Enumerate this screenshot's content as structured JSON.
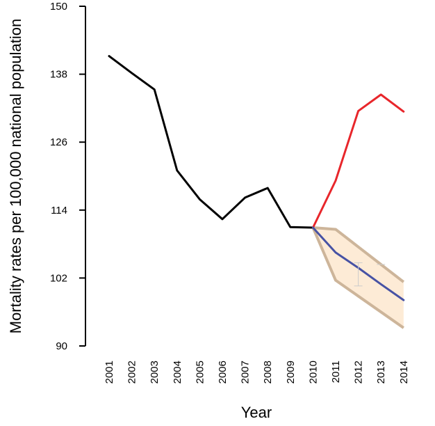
{
  "chart_data": {
    "type": "line",
    "xlabel": "Year",
    "ylabel": "Mortality rates per 100,000 national population",
    "ylim": [
      90,
      150
    ],
    "yticks": [
      90,
      102,
      114,
      126,
      138,
      150
    ],
    "x": [
      "2001",
      "2002",
      "2003",
      "2004",
      "2005",
      "2006",
      "2007",
      "2008",
      "2009",
      "2010",
      "2011",
      "2012",
      "2013",
      "2014"
    ],
    "grid": false,
    "legend": "none",
    "series": [
      {
        "color": "#000000",
        "x": [
          "2001",
          "2002",
          "2003",
          "2004",
          "2005",
          "2006",
          "2007",
          "2008",
          "2009",
          "2010"
        ],
        "values": [
          141.2,
          138.2,
          135.3,
          121.0,
          115.9,
          112.4,
          116.2,
          117.9,
          111.0,
          110.9
        ]
      },
      {
        "color": "#e8262b",
        "x": [
          "2010",
          "2011",
          "2012",
          "2013",
          "2014"
        ],
        "values": [
          110.9,
          119.2,
          131.5,
          134.4,
          131.4
        ]
      },
      {
        "color": "#4752a4",
        "x": [
          "2010",
          "2011",
          "2012",
          "2013",
          "2014"
        ],
        "values": [
          110.9,
          106.5,
          103.8,
          100.9,
          98.1
        ]
      }
    ],
    "band": {
      "fill": "#fdebd6",
      "stroke": "#cdb59a",
      "x": [
        "2010",
        "2011",
        "2012",
        "2013",
        "2014"
      ],
      "upper": [
        110.9,
        110.6,
        107.5,
        104.4,
        101.3
      ],
      "lower": [
        110.9,
        101.6,
        98.8,
        96.0,
        93.2
      ]
    },
    "error_bars": [
      {
        "x": "2012",
        "low": 100.6,
        "high": 104.7,
        "color": "#cccccc"
      },
      {
        "x": "2013",
        "low": 104.4,
        "high": 104.4,
        "color": "#cccccc"
      }
    ]
  }
}
